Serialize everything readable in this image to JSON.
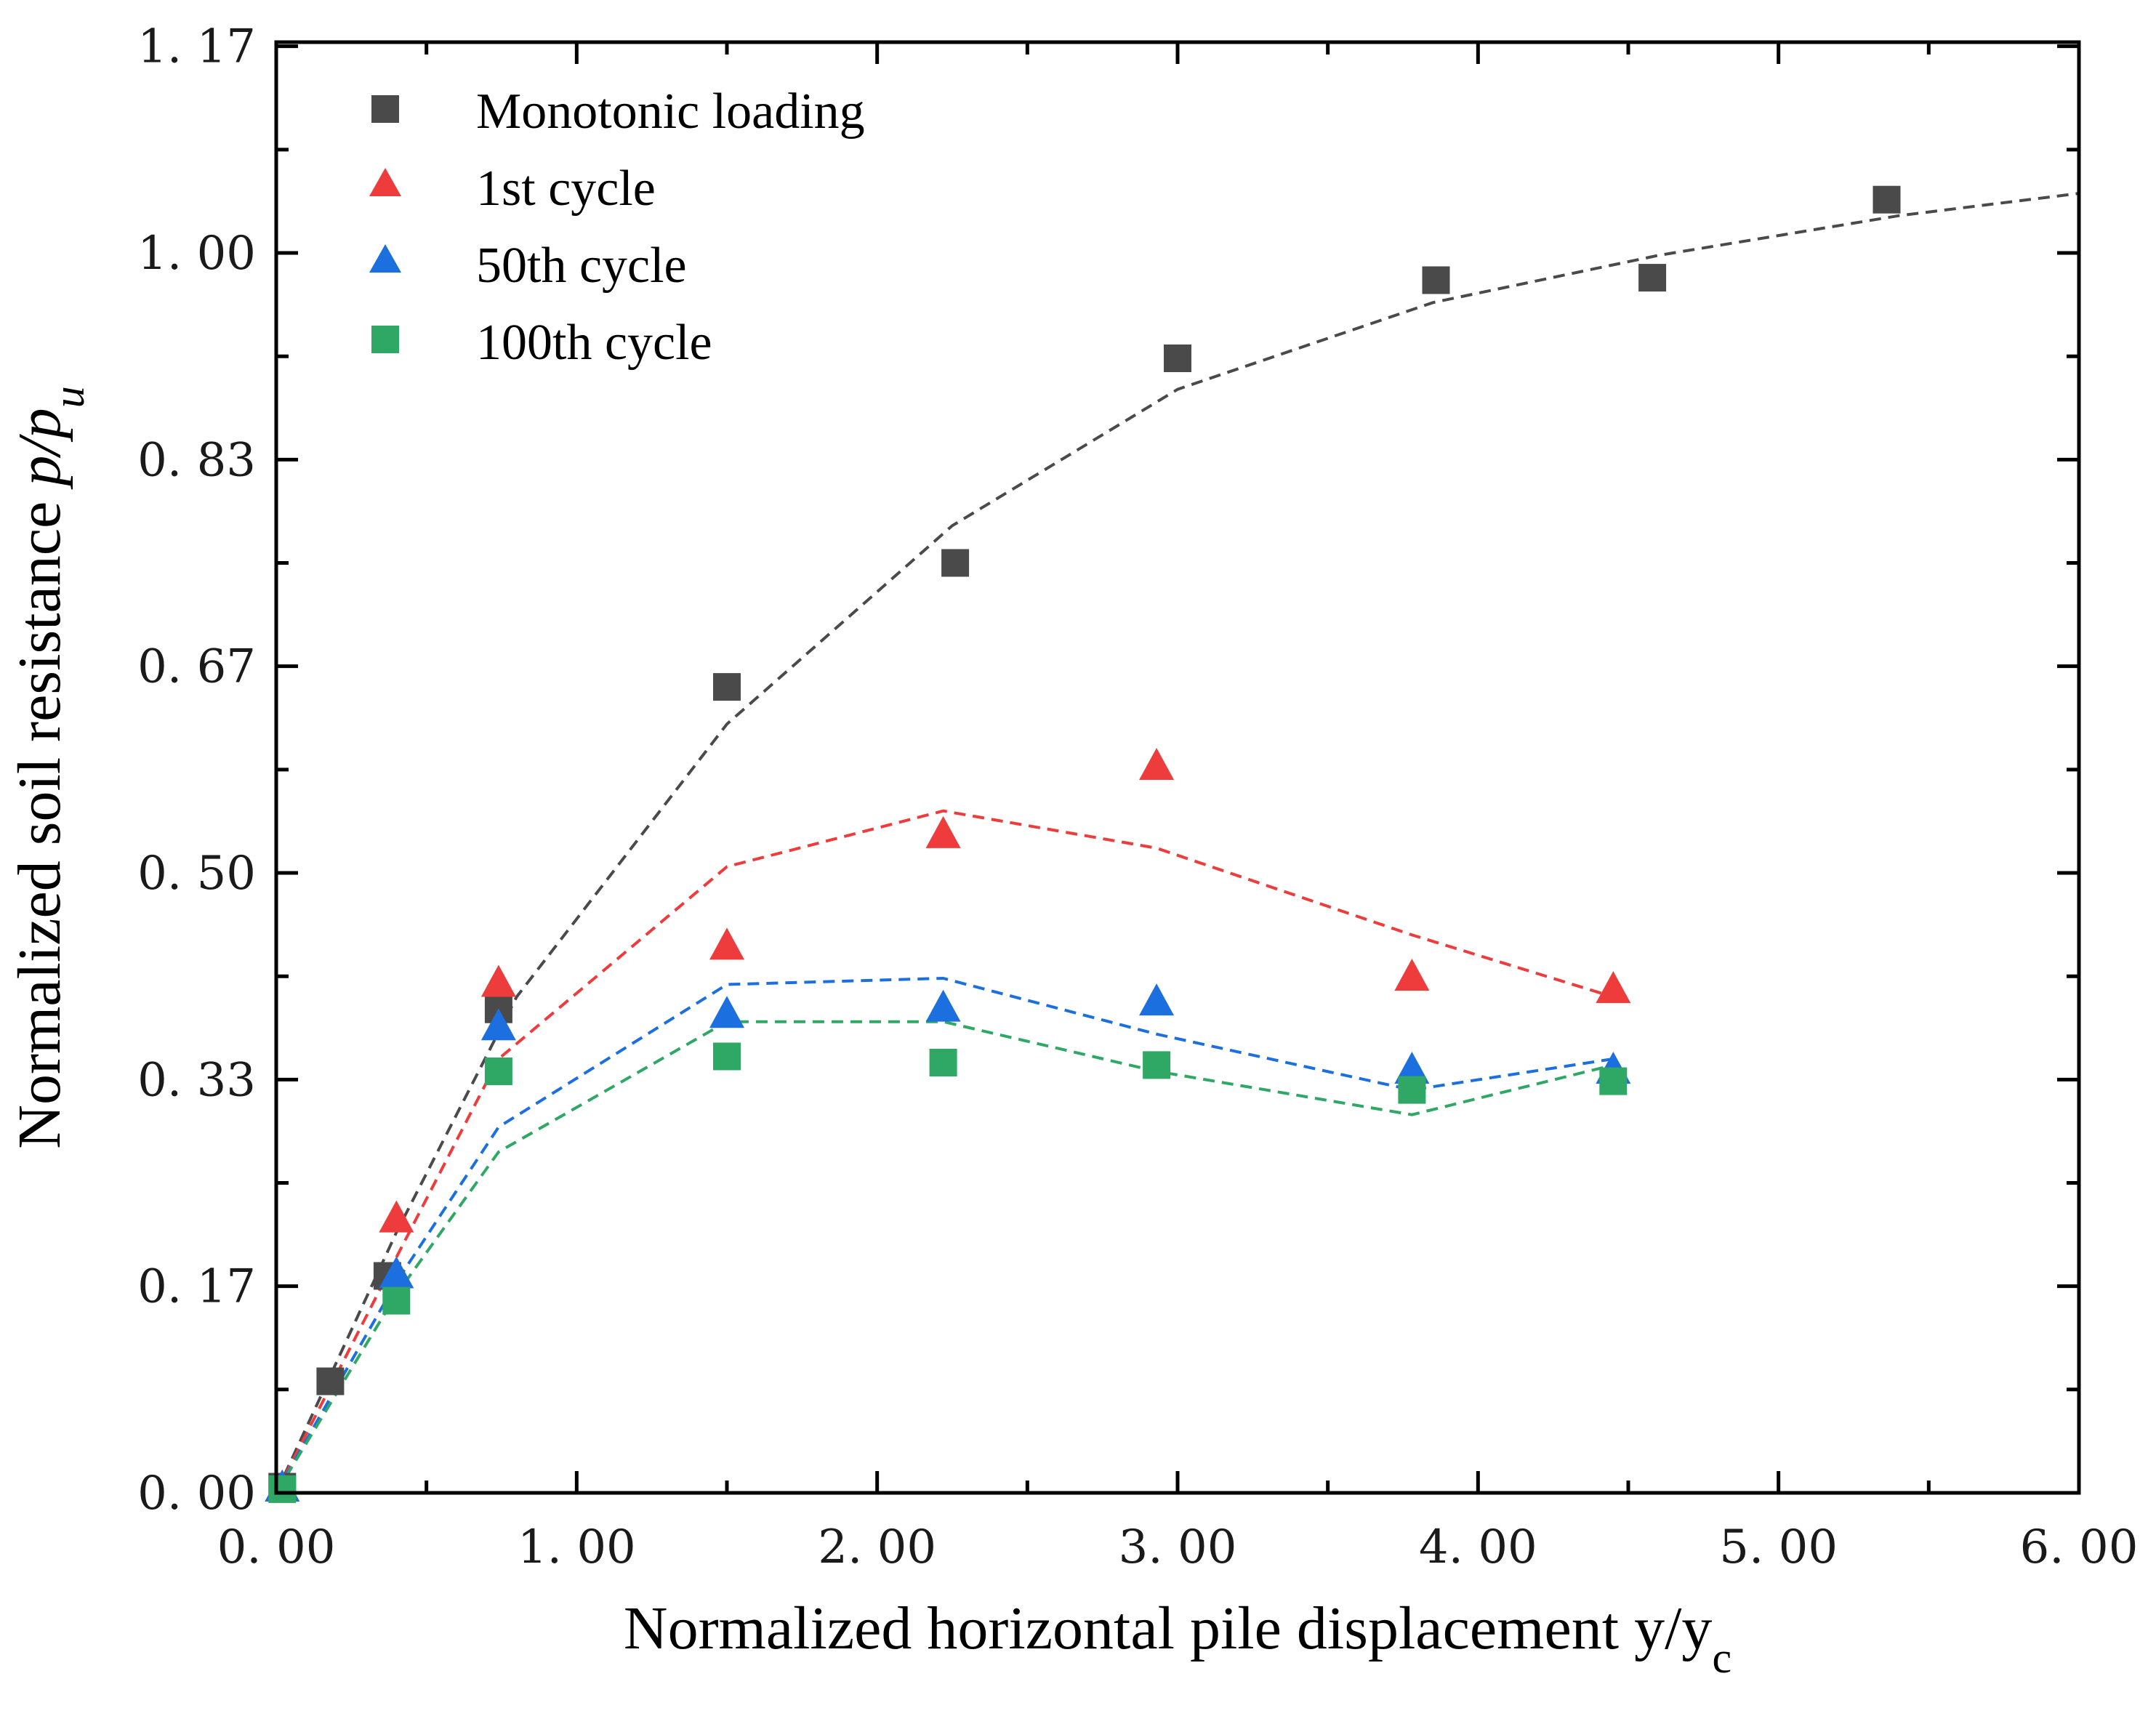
{
  "chart_data": {
    "type": "scatter",
    "title": "",
    "xlabel": "Normalized horizontal pile displacement y/y",
    "xlabel_sub": "c",
    "ylabel": "Normalized soil resistance ",
    "ylabel_italic": "p/p",
    "ylabel_sub": "u",
    "xlim": [
      0,
      6
    ],
    "ylim": [
      0,
      1.17
    ],
    "x_ticks": [
      0,
      1,
      2,
      3,
      4,
      5,
      6
    ],
    "x_tick_labels": [
      "0. 00",
      "1. 00",
      "2. 00",
      "3. 00",
      "4. 00",
      "5. 00",
      "6. 00"
    ],
    "y_ticks": [
      0,
      0.1667,
      0.3333,
      0.5,
      0.6667,
      0.8333,
      1.0,
      1.1667
    ],
    "y_tick_labels": [
      "0. 00",
      "0. 17",
      "0. 33",
      "0. 50",
      "0. 67",
      "0. 83",
      "1. 00",
      "1. 17"
    ],
    "grid": false,
    "legend_position": "top-left",
    "series": [
      {
        "name": "Monotonic loading",
        "marker": "square",
        "color": "#4a4a4a",
        "points": [
          [
            0.02,
            0.005
          ],
          [
            0.18,
            0.09
          ],
          [
            0.37,
            0.175
          ],
          [
            0.74,
            0.39
          ],
          [
            1.5,
            0.65
          ],
          [
            2.26,
            0.75
          ],
          [
            3.0,
            0.915
          ],
          [
            3.86,
            0.978
          ],
          [
            4.58,
            0.98
          ],
          [
            5.36,
            1.043
          ]
        ],
        "fit": [
          [
            0.0,
            0.0
          ],
          [
            0.4,
            0.21
          ],
          [
            0.8,
            0.4
          ],
          [
            1.5,
            0.62
          ],
          [
            2.25,
            0.78
          ],
          [
            3.0,
            0.89
          ],
          [
            3.85,
            0.96
          ],
          [
            4.6,
            0.998
          ],
          [
            5.4,
            1.03
          ],
          [
            6.0,
            1.048
          ]
        ]
      },
      {
        "name": "1st cycle",
        "marker": "triangle",
        "color": "#ee3b3b",
        "points": [
          [
            0.02,
            0.003
          ],
          [
            0.4,
            0.22
          ],
          [
            0.74,
            0.41
          ],
          [
            1.5,
            0.44
          ],
          [
            2.22,
            0.53
          ],
          [
            2.93,
            0.585
          ],
          [
            3.78,
            0.415
          ],
          [
            4.45,
            0.405
          ]
        ],
        "fit": [
          [
            0.0,
            0.0
          ],
          [
            0.4,
            0.19
          ],
          [
            0.74,
            0.35
          ],
          [
            1.5,
            0.505
          ],
          [
            2.22,
            0.55
          ],
          [
            2.93,
            0.52
          ],
          [
            3.78,
            0.45
          ],
          [
            4.45,
            0.4
          ]
        ]
      },
      {
        "name": "50th cycle",
        "marker": "triangle",
        "color": "#1c6fde",
        "points": [
          [
            0.02,
            0.003
          ],
          [
            0.4,
            0.175
          ],
          [
            0.74,
            0.375
          ],
          [
            1.5,
            0.385
          ],
          [
            2.22,
            0.39
          ],
          [
            2.93,
            0.395
          ],
          [
            3.78,
            0.34
          ],
          [
            4.45,
            0.34
          ]
        ],
        "fit": [
          [
            0.0,
            0.0
          ],
          [
            0.4,
            0.17
          ],
          [
            0.74,
            0.295
          ],
          [
            1.5,
            0.41
          ],
          [
            2.22,
            0.415
          ],
          [
            2.93,
            0.37
          ],
          [
            3.78,
            0.325
          ],
          [
            4.45,
            0.35
          ]
        ]
      },
      {
        "name": "100th cycle",
        "marker": "square",
        "color": "#2fa865",
        "points": [
          [
            0.02,
            0.003
          ],
          [
            0.4,
            0.155
          ],
          [
            0.74,
            0.34
          ],
          [
            1.5,
            0.352
          ],
          [
            2.22,
            0.347
          ],
          [
            2.93,
            0.345
          ],
          [
            3.78,
            0.325
          ],
          [
            4.45,
            0.332
          ]
        ],
        "fit": [
          [
            0.0,
            0.0
          ],
          [
            0.4,
            0.16
          ],
          [
            0.74,
            0.275
          ],
          [
            1.5,
            0.38
          ],
          [
            2.22,
            0.38
          ],
          [
            2.93,
            0.34
          ],
          [
            3.78,
            0.305
          ],
          [
            4.45,
            0.345
          ]
        ]
      }
    ]
  }
}
